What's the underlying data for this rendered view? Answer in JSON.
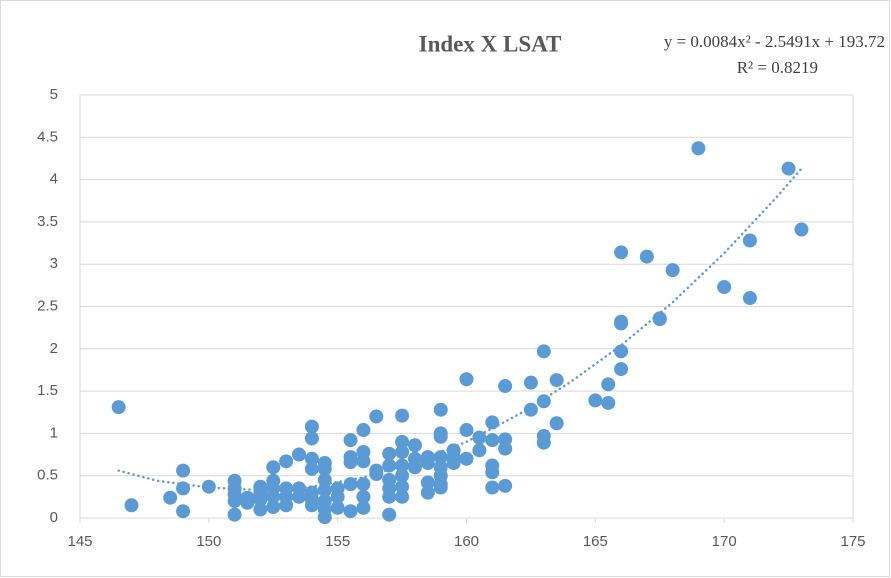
{
  "chart_data": {
    "type": "scatter",
    "title": "Index X LSAT",
    "equation": "y = 0.0084x² - 2.5491x + 193.72",
    "r_squared": "R² = 0.8219",
    "xlim": [
      145,
      175
    ],
    "xticks": [
      145,
      150,
      155,
      160,
      165,
      170,
      175
    ],
    "ylim": [
      0,
      5
    ],
    "yticks": [
      0,
      {
        "value": 0.5,
        "label": "0.5"
      },
      1,
      {
        "value": 1.5,
        "label": "1.5"
      },
      2,
      {
        "value": 2.5,
        "label": "2.5"
      },
      3,
      {
        "value": 3.5,
        "label": "3.5"
      },
      4,
      {
        "value": 4.5,
        "label": "4.5"
      },
      5
    ],
    "grid": true,
    "color": "#5b9bd5",
    "x": [
      146.5,
      147,
      148.5,
      149,
      149,
      149,
      150,
      151,
      151,
      151,
      151,
      151,
      151.5,
      151.5,
      152,
      152,
      152,
      152,
      152.5,
      152.5,
      152.5,
      152.5,
      152.5,
      153,
      153,
      153,
      153,
      153.5,
      153.5,
      153.5,
      154,
      154,
      154,
      154,
      154,
      154,
      154,
      154.5,
      154.5,
      154.5,
      154.5,
      154.5,
      154.5,
      154.5,
      155,
      155,
      155,
      155.5,
      155.5,
      155.5,
      155.5,
      155.5,
      156,
      156,
      156,
      156,
      156,
      156,
      156.5,
      156.5,
      156.5,
      157,
      157,
      157,
      157,
      157,
      157,
      157.5,
      157.5,
      157.5,
      157.5,
      157.5,
      157.5,
      157.5,
      158,
      158,
      158,
      158.5,
      158.5,
      158.5,
      158.5,
      159,
      159,
      159,
      159,
      159,
      159,
      159,
      159,
      159.5,
      159.5,
      159.5,
      160,
      160,
      160,
      160.5,
      160.5,
      161,
      161,
      161,
      161,
      161,
      161.5,
      161.5,
      161.5,
      161.5,
      162.5,
      162.5,
      163,
      163,
      163,
      163,
      163.5,
      163.5,
      165,
      165.5,
      165.5,
      166,
      166,
      166,
      166,
      166,
      167,
      167.5,
      167.5,
      168,
      169,
      170,
      171,
      171,
      172.5,
      173
    ],
    "values": [
      1.31,
      0.15,
      0.24,
      0.56,
      0.35,
      0.08,
      0.37,
      0.44,
      0.35,
      0.28,
      0.2,
      0.04,
      0.24,
      0.18,
      0.37,
      0.3,
      0.22,
      0.1,
      0.6,
      0.44,
      0.35,
      0.25,
      0.13,
      0.67,
      0.35,
      0.25,
      0.15,
      0.75,
      0.35,
      0.25,
      1.08,
      0.94,
      0.7,
      0.58,
      0.3,
      0.22,
      0.15,
      0.65,
      0.58,
      0.45,
      0.33,
      0.2,
      0.1,
      0.01,
      0.35,
      0.25,
      0.12,
      0.92,
      0.72,
      0.66,
      0.4,
      0.08,
      1.04,
      0.78,
      0.67,
      0.4,
      0.25,
      0.12,
      1.2,
      0.56,
      0.52,
      0.76,
      0.62,
      0.45,
      0.35,
      0.25,
      0.04,
      1.21,
      0.9,
      0.78,
      0.62,
      0.5,
      0.37,
      0.25,
      0.86,
      0.7,
      0.6,
      0.72,
      0.65,
      0.42,
      0.3,
      1.28,
      1.0,
      0.96,
      0.72,
      0.6,
      0.5,
      0.4,
      0.36,
      0.8,
      0.72,
      0.65,
      1.64,
      1.04,
      0.7,
      0.95,
      0.8,
      1.13,
      0.92,
      0.62,
      0.54,
      0.36,
      1.56,
      0.93,
      0.82,
      0.38,
      1.6,
      1.28,
      1.97,
      1.38,
      0.97,
      0.89,
      1.63,
      1.12,
      1.39,
      1.58,
      1.36,
      3.14,
      2.32,
      2.3,
      1.97,
      1.76,
      3.09,
      2.36,
      2.35,
      2.93,
      4.37,
      2.73,
      3.28,
      2.6,
      4.13,
      3.41
    ],
    "trendline": {
      "color": "#5b9bd5",
      "x": [
        146.5,
        148,
        150,
        152,
        154,
        156,
        158,
        160,
        162,
        164,
        166,
        168,
        170,
        172,
        173
      ],
      "values": [
        0.56,
        0.44,
        0.36,
        0.33,
        0.37,
        0.48,
        0.66,
        0.9,
        1.22,
        1.6,
        2.04,
        2.55,
        3.13,
        3.78,
        4.13
      ]
    }
  }
}
